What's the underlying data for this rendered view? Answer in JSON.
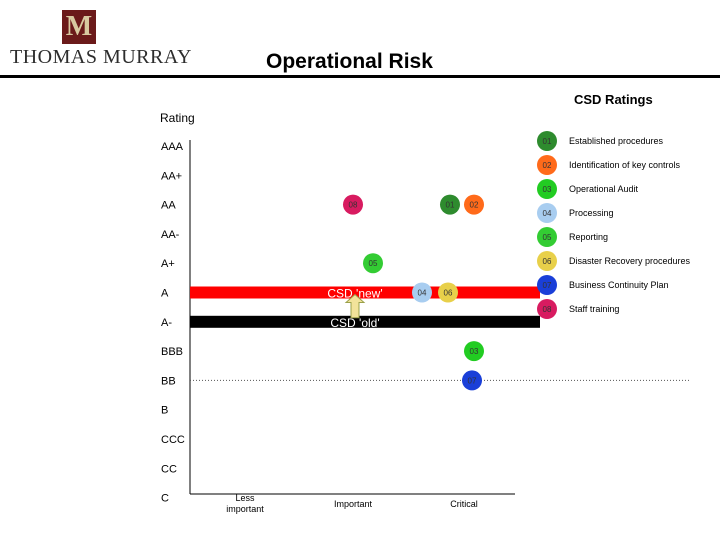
{
  "header": {
    "brand": "THOMAS MURRAY",
    "logo_letter": "M",
    "title": "Operational Risk"
  },
  "panel": {
    "subtitle": "CSD Ratings",
    "y_title": "Rating"
  },
  "chart_data": {
    "type": "scatter",
    "title": "Operational Risk",
    "subtitle": "CSD Ratings",
    "ylabel": "Rating",
    "xlabel": "",
    "y_categories": [
      "AAA",
      "AA+",
      "AA",
      "AA-",
      "A+",
      "A",
      "A-",
      "BBB",
      "BB",
      "B",
      "CCC",
      "CC",
      "C"
    ],
    "x_categories": [
      "Less important",
      "Important",
      "Critical"
    ],
    "grid": false,
    "legend_position": "right",
    "bands": [
      {
        "label": "CSD 'new'",
        "rating": "A",
        "color": "#ff0000"
      },
      {
        "label": "CSD 'old'",
        "rating": "A-",
        "color": "#000000"
      }
    ],
    "reference_line": {
      "rating": "BB",
      "style": "dotted"
    },
    "points": [
      {
        "id": "01",
        "rating": "AA",
        "importance": "Critical",
        "color": "#2e8b2e"
      },
      {
        "id": "02",
        "rating": "AA",
        "importance": "Critical",
        "color": "#ff6a1a"
      },
      {
        "id": "08",
        "rating": "AA",
        "importance": "Important",
        "color": "#d81b60"
      },
      {
        "id": "05",
        "rating": "A+",
        "importance": "Important",
        "color": "#33cc33"
      },
      {
        "id": "04",
        "rating": "A",
        "importance": "Critical",
        "color": "#a8cdf0"
      },
      {
        "id": "06",
        "rating": "A",
        "importance": "Critical",
        "color": "#e8d04a"
      },
      {
        "id": "03",
        "rating": "BBB",
        "importance": "Critical",
        "color": "#22cc22"
      },
      {
        "id": "07",
        "rating": "BB",
        "importance": "Critical",
        "color": "#1a3fd8"
      }
    ],
    "legend": [
      {
        "id": "01",
        "label": "Established procedures",
        "color": "#2e8b2e"
      },
      {
        "id": "02",
        "label": "Identification of key controls",
        "color": "#ff6a1a"
      },
      {
        "id": "03",
        "label": "Operational Audit",
        "color": "#22cc22"
      },
      {
        "id": "04",
        "label": "Processing",
        "color": "#a8cdf0"
      },
      {
        "id": "05",
        "label": "Reporting",
        "color": "#33cc33"
      },
      {
        "id": "06",
        "label": "Disaster Recovery procedures",
        "color": "#e8d04a"
      },
      {
        "id": "07",
        "label": "Business Continuity Plan",
        "color": "#1a3fd8"
      },
      {
        "id": "08",
        "label": "Staff training",
        "color": "#d81b60"
      }
    ]
  }
}
